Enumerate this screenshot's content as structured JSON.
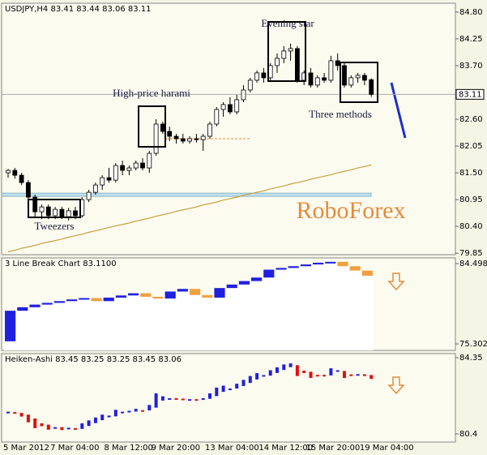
{
  "chart_data": [
    {
      "type": "candlestick",
      "title": "USDJPY,H4  83.41 83.44 83.06 83.11",
      "categories": [
        "5 Mar 2012",
        null,
        null,
        null,
        null,
        null,
        null,
        "7 Mar 04:00",
        null,
        null,
        null,
        null,
        null,
        null,
        null,
        "8 Mar 12:00",
        null,
        null,
        null,
        null,
        null,
        null,
        "9 Mar 20:00",
        null,
        null,
        null,
        null,
        null,
        null,
        null,
        "13 Mar 04:00",
        null,
        null,
        null,
        null,
        null,
        null,
        null,
        "14 Mar 12:00",
        null,
        null,
        null,
        null,
        null,
        null,
        "15 Mar 20:00",
        null,
        null,
        null,
        null,
        null,
        null,
        null,
        "19 Mar 04:00",
        null
      ],
      "open": [
        81.5,
        81.55,
        81.45,
        81.3,
        81.0,
        80.7,
        80.8,
        80.62,
        80.75,
        80.6,
        80.72,
        80.62,
        80.95,
        81.1,
        81.25,
        81.4,
        81.35,
        81.65,
        81.55,
        81.6,
        81.7,
        81.6,
        81.9,
        82.5,
        82.35,
        82.25,
        82.2,
        82.15,
        82.2,
        82.18,
        82.25,
        82.5,
        82.8,
        82.9,
        82.75,
        83.0,
        83.2,
        83.4,
        83.55,
        83.45,
        83.7,
        83.85,
        84.0,
        84.05,
        83.4,
        83.55,
        83.3,
        83.45,
        83.4,
        83.8,
        83.7,
        83.3,
        83.45,
        83.5,
        83.41
      ],
      "high": [
        81.58,
        81.6,
        81.5,
        81.35,
        81.05,
        80.85,
        80.85,
        80.8,
        80.8,
        80.78,
        80.8,
        81.0,
        81.15,
        81.3,
        81.45,
        81.6,
        81.7,
        81.75,
        81.65,
        81.75,
        81.8,
        81.95,
        82.6,
        82.55,
        82.45,
        82.3,
        82.3,
        82.25,
        82.3,
        82.3,
        82.55,
        82.85,
        82.95,
        83.05,
        83.1,
        83.3,
        83.45,
        83.6,
        83.65,
        83.75,
        83.95,
        84.1,
        84.15,
        84.1,
        83.6,
        83.65,
        83.5,
        83.55,
        83.9,
        83.95,
        83.75,
        83.5,
        83.55,
        83.55,
        83.44
      ],
      "low": [
        81.4,
        81.38,
        81.25,
        80.95,
        80.6,
        80.55,
        80.55,
        80.55,
        80.55,
        80.52,
        80.55,
        80.58,
        80.9,
        81.05,
        81.15,
        81.3,
        81.3,
        81.45,
        81.45,
        81.55,
        81.55,
        81.5,
        81.85,
        82.3,
        82.15,
        82.1,
        82.1,
        82.1,
        82.12,
        81.95,
        82.2,
        82.45,
        82.65,
        82.7,
        82.7,
        82.95,
        83.15,
        83.35,
        83.35,
        83.4,
        83.55,
        83.75,
        83.8,
        83.35,
        83.3,
        83.25,
        83.25,
        83.35,
        83.35,
        83.6,
        83.25,
        83.25,
        83.35,
        83.3,
        83.06
      ],
      "close": [
        81.55,
        81.45,
        81.3,
        81.0,
        80.7,
        80.8,
        80.62,
        80.75,
        80.6,
        80.72,
        80.62,
        80.95,
        81.1,
        81.25,
        81.4,
        81.35,
        81.65,
        81.55,
        81.6,
        81.7,
        81.6,
        81.9,
        82.5,
        82.35,
        82.25,
        82.2,
        82.15,
        82.2,
        82.18,
        82.25,
        82.5,
        82.8,
        82.9,
        82.75,
        83.0,
        83.2,
        83.4,
        83.55,
        83.45,
        83.7,
        83.85,
        84.0,
        84.05,
        83.4,
        83.55,
        83.3,
        83.45,
        83.4,
        83.8,
        83.7,
        83.3,
        83.45,
        83.5,
        83.4,
        83.11
      ],
      "up_color": "#ffffff",
      "down_color": "#000000",
      "ma": {
        "color": "#c9a040",
        "values": [
          79.88,
          79.91,
          79.95,
          79.98,
          80.01,
          80.05,
          80.08,
          80.11,
          80.14,
          80.18,
          80.21,
          80.24,
          80.28,
          80.31,
          80.34,
          80.38,
          80.41,
          80.44,
          80.47,
          80.51,
          80.54,
          80.57,
          80.61,
          80.64,
          80.67,
          80.71,
          80.74,
          80.77,
          80.8,
          80.84,
          80.87,
          80.9,
          80.94,
          80.97,
          81.0,
          81.04,
          81.07,
          81.1,
          81.13,
          81.17,
          81.2,
          81.23,
          81.27,
          81.3,
          81.33,
          81.37,
          81.4,
          81.43,
          81.46,
          81.5,
          81.53,
          81.56,
          81.6,
          81.63,
          81.66
        ]
      },
      "support_level": 81.05,
      "harami_level": 82.2,
      "current_price": 83.11,
      "ylim": [
        79.82,
        84.98
      ],
      "yticks": [
        {
          "value": 84.8,
          "label": "84.80"
        },
        84.25,
        {
          "value": 83.7,
          "label": "83.70"
        },
        {
          "value": 82.6,
          "label": "82.60"
        },
        82.05,
        {
          "value": 81.5,
          "label": "81.50"
        },
        80.95,
        {
          "value": 80.4,
          "label": "80.40"
        },
        79.85
      ],
      "annotations": [
        "Tweezers",
        "High-price harami",
        "Evening star",
        "Three methods"
      ],
      "watermark": "RoboForex"
    },
    {
      "type": "line_break",
      "title": "3 Line Break Chart 83.1100",
      "open": [
        75.6,
        79.1,
        79.5,
        79.8,
        80.0,
        80.2,
        80.4,
        80.55,
        80.2,
        80.6,
        80.85,
        81.1,
        80.7,
        80.5,
        81.3,
        81.6,
        80.9,
        80.6,
        81.7,
        82.1,
        82.5,
        82.9,
        83.8,
        84.0,
        84.2,
        84.4,
        84.6,
        84.7,
        84.2,
        83.7
      ],
      "close": [
        79.1,
        79.5,
        79.8,
        80.0,
        80.2,
        80.4,
        80.55,
        80.2,
        80.6,
        80.85,
        81.1,
        80.7,
        80.5,
        81.3,
        81.6,
        80.9,
        80.6,
        81.7,
        82.1,
        82.5,
        82.9,
        83.8,
        84.0,
        84.2,
        84.4,
        84.6,
        84.7,
        84.2,
        83.7,
        83.11
      ],
      "up_color": "#2020e0",
      "down_color": "#f0a040",
      "ylim": [
        74.56,
        85.15
      ],
      "yticks": [
        84.498,
        75.302
      ]
    },
    {
      "type": "heiken_ashi",
      "title": "Heiken-Ashi 83.45 83.25 83.25 83.45 83.06",
      "open": [
        81.5,
        81.53,
        81.49,
        81.4,
        81.2,
        80.95,
        80.88,
        80.75,
        80.75,
        80.68,
        80.7,
        80.66,
        80.81,
        80.96,
        81.11,
        81.26,
        81.31,
        81.48,
        81.52,
        81.56,
        81.63,
        81.62,
        81.76,
        82.13,
        82.24,
        82.25,
        82.23,
        82.19,
        82.2,
        82.19,
        82.22,
        82.36,
        82.58,
        82.74,
        82.75,
        82.88,
        83.04,
        83.22,
        83.39,
        83.42,
        83.56,
        83.71,
        83.86,
        83.96,
        83.68,
        83.62,
        83.46,
        83.46,
        83.43,
        83.62,
        83.66,
        83.48,
        83.47,
        83.49,
        83.45
      ],
      "close": [
        81.55,
        81.45,
        81.3,
        81.0,
        80.7,
        80.8,
        80.62,
        80.75,
        80.6,
        80.72,
        80.62,
        80.95,
        81.1,
        81.25,
        81.4,
        81.35,
        81.65,
        81.55,
        81.6,
        81.7,
        81.6,
        81.9,
        82.5,
        82.35,
        82.25,
        82.2,
        82.15,
        82.2,
        82.18,
        82.25,
        82.5,
        82.8,
        82.9,
        82.75,
        83.0,
        83.2,
        83.4,
        83.55,
        83.45,
        83.7,
        83.85,
        84.0,
        84.05,
        83.4,
        83.55,
        83.3,
        83.45,
        83.4,
        83.8,
        83.7,
        83.3,
        83.45,
        83.5,
        83.4,
        83.25
      ],
      "up_color": "#2020e0",
      "down_color": "#e01010",
      "ylim": [
        79.98,
        84.56
      ],
      "yticks": [
        84.35,
        80.4
      ]
    }
  ]
}
